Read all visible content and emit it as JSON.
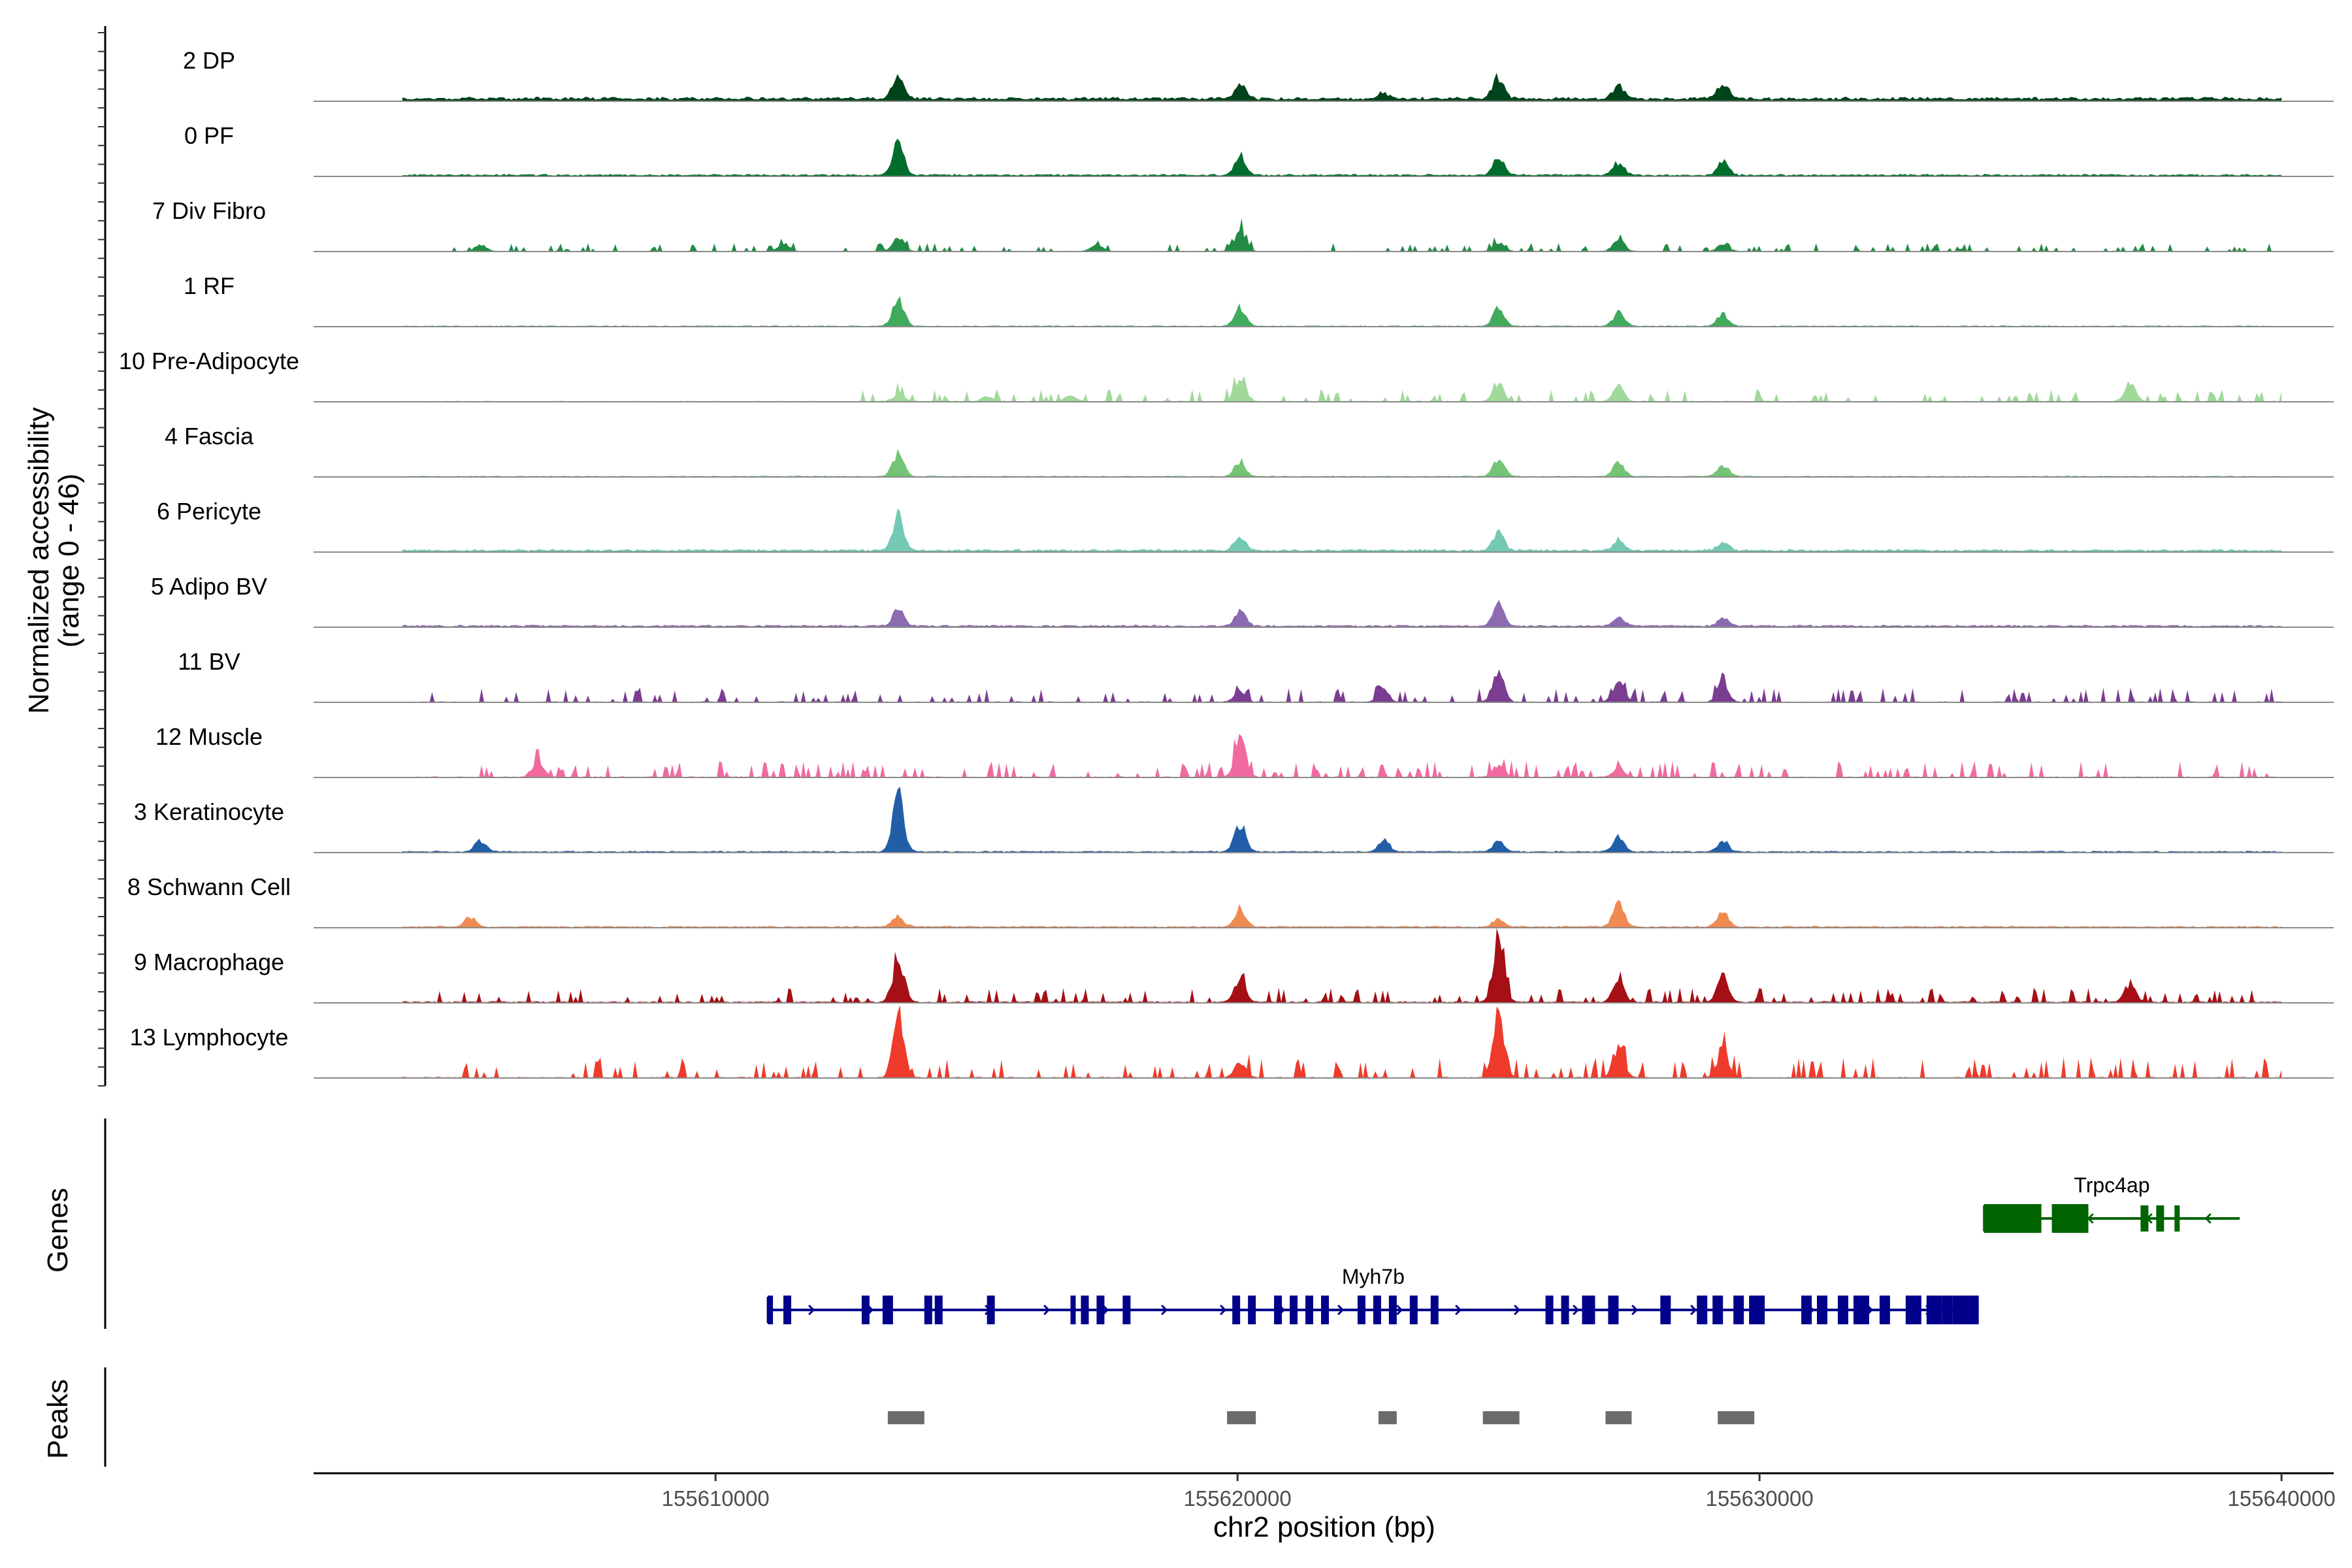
{
  "chart_data": {
    "type": "coverage",
    "chromosome": "chr2",
    "xlabel": "chr2 position (bp)",
    "xlim": [
      155602300,
      155641000
    ],
    "xticks": [
      155610000,
      155620000,
      155630000,
      155640000
    ],
    "xtick_labels": [
      "155610000",
      "155620000",
      "155630000",
      "155640000"
    ],
    "ylabel_line1": "Normalized accessibility",
    "ylabel_line2": "(range 0 - 46)",
    "ylim": [
      0,
      46
    ],
    "panel_titles": {
      "genes": "Genes",
      "peaks": "Peaks"
    },
    "tracks": [
      {
        "label": "2 DP",
        "color": "#00441b",
        "baseline": 0.4,
        "noise": 0.6,
        "peaks": [
          [
            155613500,
            3.2
          ],
          [
            155620050,
            2.0
          ],
          [
            155622800,
            0.8
          ],
          [
            155625000,
            2.8
          ],
          [
            155627300,
            1.8
          ],
          [
            155629300,
            2.0
          ]
        ],
        "sparse": []
      },
      {
        "label": "0 PF",
        "color": "#006d2c",
        "baseline": 0.2,
        "noise": 0.5,
        "peaks": [
          [
            155613500,
            4.0
          ],
          [
            155620050,
            2.6
          ],
          [
            155625000,
            2.5
          ],
          [
            155627300,
            1.6
          ],
          [
            155629300,
            1.7
          ]
        ],
        "sparse": []
      },
      {
        "label": "7 Div Fibro",
        "color": "#238b45",
        "baseline": 0.05,
        "noise": 0.3,
        "peaks": [
          [
            155613500,
            2.0
          ],
          [
            155620050,
            2.8
          ],
          [
            155625000,
            1.2
          ],
          [
            155627300,
            1.6
          ],
          [
            155629300,
            1.0
          ],
          [
            155617300,
            1.0
          ],
          [
            155605500,
            0.8
          ],
          [
            155611300,
            1.0
          ]
        ],
        "sparse": [
          [
            155604700,
            155641000,
            0.8
          ]
        ]
      },
      {
        "label": "1 RF",
        "color": "#41ab5d",
        "baseline": 0.1,
        "noise": 0.3,
        "peaks": [
          [
            155613500,
            3.6
          ],
          [
            155620050,
            2.4
          ],
          [
            155625000,
            2.2
          ],
          [
            155627300,
            1.8
          ],
          [
            155629300,
            1.6
          ]
        ],
        "sparse": []
      },
      {
        "label": "10 Pre-Adipocyte",
        "color": "#a1d99b",
        "baseline": 0.05,
        "noise": 0.6,
        "peaks": [
          [
            155620050,
            3.0
          ],
          [
            155625000,
            2.2
          ],
          [
            155627300,
            2.0
          ],
          [
            155613500,
            1.0
          ],
          [
            155637100,
            2.4
          ],
          [
            155615200,
            0.6
          ],
          [
            155616800,
            0.8
          ]
        ],
        "sparse": [
          [
            155612800,
            155641000,
            1.2
          ]
        ]
      },
      {
        "label": "4 Fascia",
        "color": "#74c476",
        "baseline": 0.1,
        "noise": 0.3,
        "peaks": [
          [
            155613500,
            3.0
          ],
          [
            155620050,
            2.0
          ],
          [
            155625000,
            2.4
          ],
          [
            155627300,
            1.8
          ],
          [
            155629300,
            1.5
          ]
        ],
        "sparse": []
      },
      {
        "label": "6 Pericyte",
        "color": "#74c9b3",
        "baseline": 0.25,
        "noise": 0.6,
        "peaks": [
          [
            155613500,
            4.4
          ],
          [
            155620050,
            1.8
          ],
          [
            155625000,
            2.4
          ],
          [
            155627300,
            1.4
          ],
          [
            155629300,
            1.0
          ]
        ],
        "sparse": []
      },
      {
        "label": "5 Adipo BV",
        "color": "#8c6bb1",
        "baseline": 0.2,
        "noise": 0.5,
        "peaks": [
          [
            155613500,
            2.2
          ],
          [
            155620050,
            2.0
          ],
          [
            155625000,
            2.8
          ],
          [
            155627300,
            1.2
          ],
          [
            155629300,
            1.0
          ]
        ],
        "sparse": []
      },
      {
        "label": "11 BV",
        "color": "#7a3d91",
        "baseline": 0.0,
        "noise": 0.9,
        "peaks": [
          [
            155625000,
            4.6
          ],
          [
            155627300,
            3.0
          ],
          [
            155629300,
            2.8
          ],
          [
            155620050,
            1.6
          ],
          [
            155622800,
            1.8
          ]
        ],
        "sparse": [
          [
            155604500,
            155641000,
            1.4
          ]
        ]
      },
      {
        "label": "12 Muscle",
        "color": "#f06aa0",
        "baseline": 0.0,
        "noise": 1.0,
        "peaks": [
          [
            155620050,
            5.0
          ],
          [
            155606600,
            2.4
          ],
          [
            155625000,
            1.6
          ],
          [
            155627300,
            1.4
          ]
        ],
        "sparse": [
          [
            155605200,
            155641000,
            1.6
          ]
        ]
      },
      {
        "label": "3 Keratinocyte",
        "color": "#225ea8",
        "baseline": 0.15,
        "noise": 0.4,
        "peaks": [
          [
            155613500,
            7.2
          ],
          [
            155620050,
            3.6
          ],
          [
            155605500,
            1.6
          ],
          [
            155625000,
            1.4
          ],
          [
            155627300,
            2.0
          ],
          [
            155629300,
            1.4
          ],
          [
            155622800,
            1.6
          ]
        ],
        "sparse": []
      },
      {
        "label": "8 Schwann Cell",
        "color": "#f08a53",
        "baseline": 0.15,
        "noise": 0.5,
        "peaks": [
          [
            155627300,
            3.0
          ],
          [
            155620050,
            2.4
          ],
          [
            155629300,
            2.0
          ],
          [
            155613500,
            1.4
          ],
          [
            155625000,
            1.0
          ],
          [
            155605300,
            1.2
          ]
        ],
        "sparse": []
      },
      {
        "label": "9 Macrophage",
        "color": "#a50f15",
        "baseline": 0.1,
        "noise": 0.7,
        "peaks": [
          [
            155625000,
            8.6
          ],
          [
            155613500,
            5.6
          ],
          [
            155620050,
            3.2
          ],
          [
            155629300,
            3.6
          ],
          [
            155627300,
            2.8
          ],
          [
            155637100,
            2.4
          ]
        ],
        "sparse": [
          [
            155604500,
            155641000,
            1.4
          ]
        ]
      },
      {
        "label": "13 Lymphocyte",
        "color": "#ef3b2c",
        "baseline": 0.0,
        "noise": 1.0,
        "peaks": [
          [
            155625000,
            8.2
          ],
          [
            155613500,
            8.0
          ],
          [
            155627300,
            4.2
          ],
          [
            155629300,
            3.6
          ],
          [
            155620050,
            2.0
          ]
        ],
        "sparse": [
          [
            155605000,
            155641000,
            2.0
          ]
        ]
      }
    ],
    "genes": [
      {
        "name": "Trpc4ap",
        "strand": "-",
        "color": "#006400",
        "start": 155634300,
        "end": 155639200,
        "exons": [
          [
            155634300,
            155635400,
            "wide"
          ],
          [
            155635600,
            155636300,
            "wide"
          ],
          [
            155637300,
            155637450,
            "thin"
          ],
          [
            155637600,
            155637750,
            "thin"
          ],
          [
            155637950,
            155638050,
            "thin"
          ]
        ]
      },
      {
        "name": "Myh7b",
        "strand": "+",
        "color": "#00008b",
        "start": 155611000,
        "end": 155634200,
        "exons": [
          [
            155611000,
            155611100
          ],
          [
            155611300,
            155611450
          ],
          [
            155612800,
            155612950
          ],
          [
            155613200,
            155613400
          ],
          [
            155614000,
            155614150
          ],
          [
            155614200,
            155614350
          ],
          [
            155615200,
            155615350
          ],
          [
            155616800,
            155616900
          ],
          [
            155617000,
            155617150
          ],
          [
            155617300,
            155617450
          ],
          [
            155617800,
            155617950
          ],
          [
            155619900,
            155620050
          ],
          [
            155620200,
            155620350
          ],
          [
            155620700,
            155620850
          ],
          [
            155621000,
            155621150
          ],
          [
            155621300,
            155621450
          ],
          [
            155621600,
            155621750
          ],
          [
            155622300,
            155622450
          ],
          [
            155622600,
            155622750
          ],
          [
            155622900,
            155623050
          ],
          [
            155623300,
            155623450
          ],
          [
            155623700,
            155623850
          ],
          [
            155625900,
            155626050
          ],
          [
            155626200,
            155626350
          ],
          [
            155626600,
            155626850
          ],
          [
            155627100,
            155627300
          ],
          [
            155628100,
            155628300
          ],
          [
            155628800,
            155629000
          ],
          [
            155629100,
            155629300
          ],
          [
            155629500,
            155629700
          ],
          [
            155629800,
            155630100
          ],
          [
            155630800,
            155631000
          ],
          [
            155631100,
            155631300
          ],
          [
            155631500,
            155631700
          ],
          [
            155631800,
            155632100
          ],
          [
            155632300,
            155632500
          ],
          [
            155632800,
            155633100
          ],
          [
            155633200,
            155633500
          ],
          [
            155633500,
            155633700
          ],
          [
            155633700,
            155634200
          ]
        ]
      }
    ],
    "peaks": [
      [
        155613300,
        155614000
      ],
      [
        155619800,
        155620350
      ],
      [
        155622700,
        155623050
      ],
      [
        155624700,
        155625400
      ],
      [
        155627050,
        155627550
      ],
      [
        155629200,
        155629900
      ]
    ]
  }
}
